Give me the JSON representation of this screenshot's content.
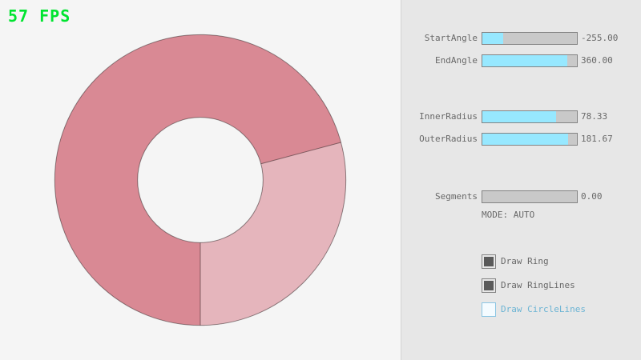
{
  "fps": "57 FPS",
  "colors": {
    "background": "#f5f5f5",
    "panel": "#e7e7e7",
    "fps_green": "#00e430",
    "slider_fill_cyan": "#97e8ff",
    "slider_track_gray": "#c9c9c9",
    "label_gray": "#686868",
    "ring_double_pass_pink": "#d98994",
    "ring_single_pass_pink": "#e5b5bc",
    "focused_blue": "#6cb4d4"
  },
  "ring": {
    "start_angle": -255.0,
    "end_angle": 360.0,
    "inner_radius": 78.33,
    "outer_radius": 181.67,
    "segments": 0.0,
    "mode": "AUTO",
    "color_double_pass": "#d98994",
    "color_single_pass": "#e5b5bc"
  },
  "panel": {
    "sliders": [
      {
        "label": "StartAngle",
        "value": "-255.00",
        "fill": "21.7%"
      },
      {
        "label": "EndAngle",
        "value": "360.00",
        "fill": "90%"
      },
      {
        "label": "InnerRadius",
        "value": "78.33",
        "fill": "78.3%"
      },
      {
        "label": "OuterRadius",
        "value": "181.67",
        "fill": "90.8%"
      },
      {
        "label": "Segments",
        "value": "0.00",
        "fill": "0%"
      }
    ],
    "mode_text": "MODE: AUTO",
    "checkboxes": [
      {
        "label": "Draw Ring",
        "checked": true
      },
      {
        "label": "Draw RingLines",
        "checked": true
      },
      {
        "label": "Draw CircleLines",
        "checked": false
      }
    ]
  }
}
